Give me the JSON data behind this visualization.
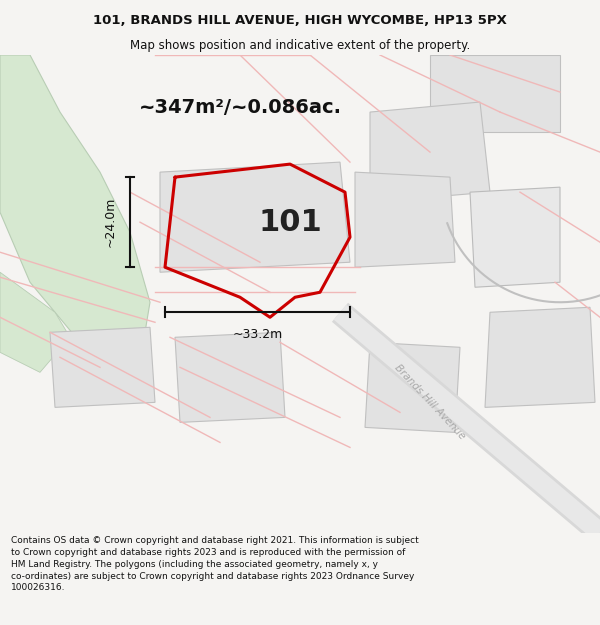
{
  "title_line1": "101, BRANDS HILL AVENUE, HIGH WYCOMBE, HP13 5PX",
  "title_line2": "Map shows position and indicative extent of the property.",
  "area_label": "~347m²/~0.086ac.",
  "property_number": "101",
  "dim_height": "~24.0m",
  "dim_width": "~33.2m",
  "street_label": "Brands Hill Avenue",
  "footer_text": "Contains OS data © Crown copyright and database right 2021. This information is subject to Crown copyright and database rights 2023 and is reproduced with the permission of HM Land Registry. The polygons (including the associated geometry, namely x, y co-ordinates) are subject to Crown copyright and database rights 2023 Ordnance Survey 100026316.",
  "bg_color": "#f5f4f2",
  "map_bg": "#ffffff",
  "green_area_color": "#d6e8d0",
  "gray_block_color": "#e2e2e2",
  "road_color": "#f0b8b8",
  "property_outline_color": "#cc0000",
  "dim_line_color": "#111111"
}
